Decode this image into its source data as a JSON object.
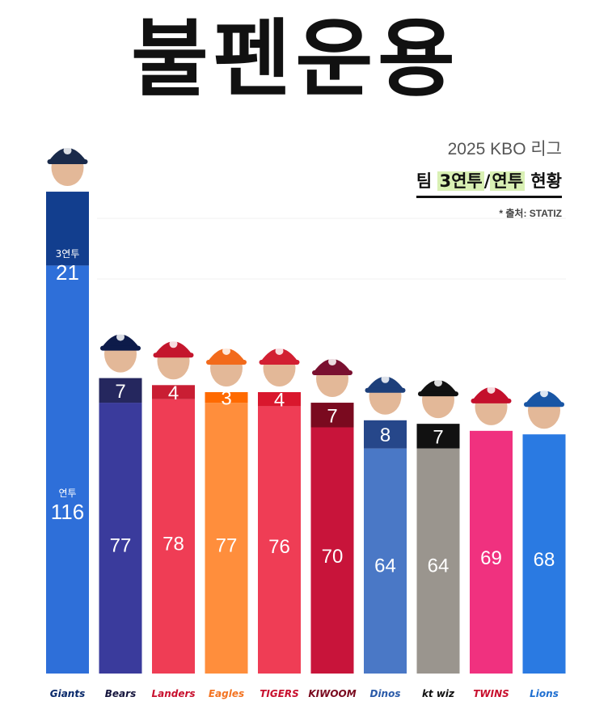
{
  "title": "불펜운용",
  "subtitle": {
    "season": "2025 KBO 리그",
    "pre": "팀 ",
    "hl1": "3연투",
    "mid": "/",
    "hl2": "연투",
    "post": " 현황",
    "source": "* 출처: STATIZ"
  },
  "labels": {
    "three": "3연투",
    "two": "연투"
  },
  "chart_data": {
    "type": "bar",
    "stacked": true,
    "categories": [
      "Giants",
      "Bears",
      "Landers",
      "Eagles",
      "Tigers",
      "Kiwoom",
      "Dinos",
      "kt wiz",
      "Twins",
      "Lions"
    ],
    "series": [
      {
        "name": "연투",
        "values": [
          116,
          77,
          78,
          77,
          76,
          70,
          64,
          64,
          69,
          68
        ]
      },
      {
        "name": "3연투",
        "values": [
          21,
          7,
          4,
          3,
          4,
          7,
          8,
          7,
          0,
          0
        ]
      }
    ],
    "colors": {
      "bottom": [
        "#2e6fd9",
        "#3a3b9c",
        "#ef3d55",
        "#ff8e3c",
        "#ef3d55",
        "#c8143a",
        "#4a78c6",
        "#9a958e",
        "#f0317f",
        "#2a7ae2"
      ],
      "top": [
        "#123e8e",
        "#25275e",
        "#c91e33",
        "#ff6a00",
        "#d9172d",
        "#7a0a1f",
        "#26478a",
        "#111111",
        "#f0317f",
        "#2a7ae2"
      ],
      "cap": [
        "#1a2a4a",
        "#0d1b4a",
        "#c4162d",
        "#f26a1b",
        "#d21f32",
        "#7a1030",
        "#1d3f7a",
        "#111111",
        "#c4102c",
        "#1956a5"
      ]
    },
    "logos": [
      "Giants",
      "Bears",
      "Landers",
      "Eagles",
      "TIGERS",
      "KIWOOM",
      "Dinos",
      "kt wiz",
      "TWINS",
      "Lions"
    ],
    "logo_colors": [
      "#0a2a6b",
      "#14143c",
      "#c8102e",
      "#f37321",
      "#c8102e",
      "#7a0a1f",
      "#2a5aa8",
      "#111111",
      "#c8102e",
      "#1f6fd1"
    ]
  }
}
